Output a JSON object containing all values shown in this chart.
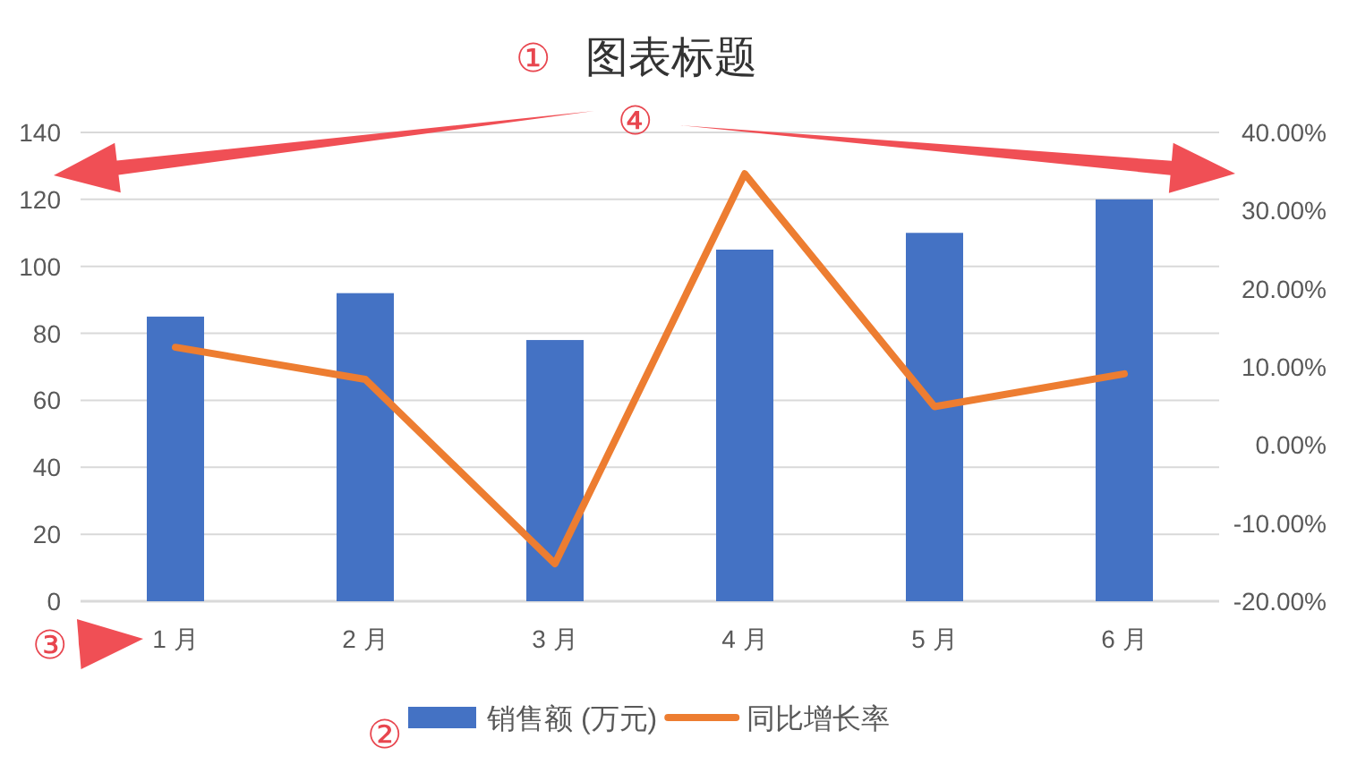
{
  "chart_data": {
    "type": "bar",
    "title": "图表标题",
    "categories": [
      "1 月",
      "2 月",
      "3 月",
      "4 月",
      "5 月",
      "6 月"
    ],
    "series": [
      {
        "name": "销售额 (万元)",
        "color": "#4472c4",
        "values": [
          85,
          92,
          78,
          105,
          110,
          120
        ]
      },
      {
        "name": "同比增长率",
        "type": "line",
        "axis": "y2",
        "color": "#ed7d31",
        "values": [
          12.5,
          8.4,
          -15.2,
          34.7,
          4.9,
          9.1
        ]
      }
    ],
    "ylim": [
      0,
      140
    ],
    "yticks": [
      0,
      20,
      40,
      60,
      80,
      100,
      120,
      140
    ],
    "y2lim": [
      -20,
      40
    ],
    "y2ticks": [
      {
        "value": -20,
        "label": "-20.00%"
      },
      {
        "value": -10,
        "label": "-10.00%"
      },
      {
        "value": 0,
        "label": "0.00%"
      },
      {
        "value": 10,
        "label": "10.00%"
      },
      {
        "value": 20,
        "label": "20.00%"
      },
      {
        "value": 30,
        "label": "30.00%"
      },
      {
        "value": 40,
        "label": "40.00%"
      }
    ],
    "grid": "y",
    "legend": "bottom",
    "annotations": [
      "①",
      "②",
      "③",
      "④"
    ]
  }
}
